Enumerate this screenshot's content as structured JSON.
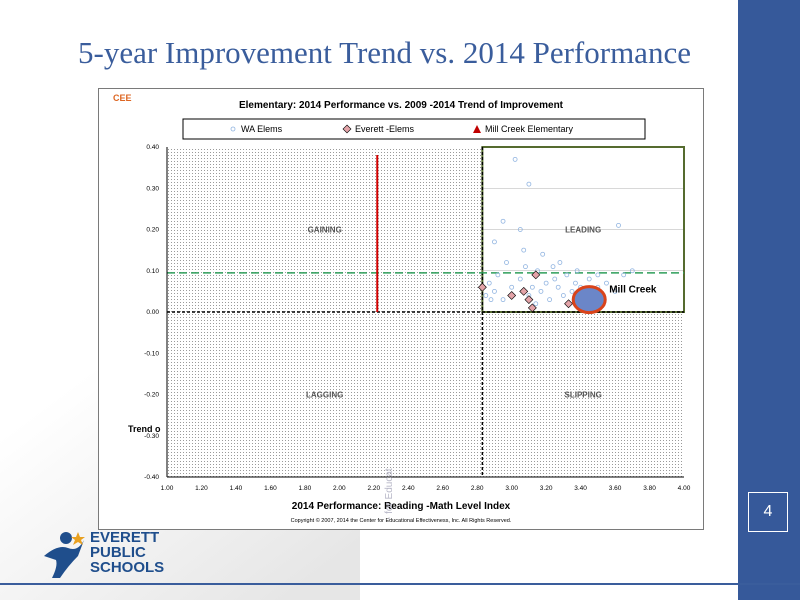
{
  "slide": {
    "title": "5-year Improvement Trend vs. 2014 Performance",
    "page_number": "4",
    "trend_label": "Trend o",
    "vertical_text": "- for Educat",
    "logo_lines": [
      "EVERETT",
      "PUBLIC",
      "SCHOOLS"
    ],
    "colors": {
      "sidebar": "#36599a",
      "title": "#3a5d9c"
    }
  },
  "chart_data": {
    "type": "scatter",
    "title": "Elementary:  2014 Performance vs. 2009   -2014 Trend of Improvement",
    "brand": "CEE",
    "xlabel": "2014 Performance: Reading   -Math Level Index",
    "ylabel": "",
    "xlim": [
      1.0,
      4.0
    ],
    "ylim": [
      -0.4,
      0.4
    ],
    "x_ticks": [
      "1.00",
      "1.20",
      "1.40",
      "1.60",
      "1.80",
      "2.00",
      "2.20",
      "2.40",
      "2.60",
      "2.80",
      "3.00",
      "3.20",
      "3.40",
      "3.60",
      "3.80",
      "4.00"
    ],
    "y_ticks": [
      "0.40",
      "0.30",
      "0.20",
      "0.10",
      "0.00",
      "-0.10",
      "-0.20",
      "-0.30",
      "-0.40"
    ],
    "legend": [
      "WA Elems",
      "Everett  -Elems",
      "Mill Creek Elementary"
    ],
    "legend_position": "top",
    "quadrants": [
      "GAINING",
      "LEADING",
      "LAGGING",
      "SLIPPING"
    ],
    "reference_lines": {
      "x_red": 2.22,
      "x_divider": 2.83,
      "y_green": 0.095
    },
    "highlight_label": "Mill Creek",
    "highlight": {
      "x": 3.45,
      "y": 0.03
    },
    "footer": "Copyright © 2007, 2014 the Center for Educational Effectiveness, Inc.  All Rights Reserved.",
    "series": [
      {
        "name": "WA Elems",
        "marker": "circle",
        "color": "#8fb3e0",
        "points": [
          [
            2.85,
            0.04
          ],
          [
            2.87,
            0.07
          ],
          [
            2.9,
            0.05
          ],
          [
            2.92,
            0.09
          ],
          [
            2.95,
            0.03
          ],
          [
            2.97,
            0.12
          ],
          [
            3.0,
            0.06
          ],
          [
            3.02,
            0.37
          ],
          [
            3.05,
            0.08
          ],
          [
            3.07,
            0.15
          ],
          [
            3.1,
            0.04
          ],
          [
            3.12,
            0.06
          ],
          [
            3.15,
            0.1
          ],
          [
            3.17,
            0.05
          ],
          [
            3.2,
            0.07
          ],
          [
            3.22,
            0.03
          ],
          [
            3.25,
            0.08
          ],
          [
            3.27,
            0.06
          ],
          [
            3.3,
            0.04
          ],
          [
            3.32,
            0.09
          ],
          [
            3.35,
            0.05
          ],
          [
            3.37,
            0.07
          ],
          [
            3.4,
            0.06
          ],
          [
            3.42,
            0.03
          ],
          [
            3.45,
            0.08
          ],
          [
            3.47,
            0.05
          ],
          [
            3.5,
            0.06
          ],
          [
            3.52,
            0.04
          ],
          [
            3.55,
            0.07
          ],
          [
            3.6,
            0.05
          ],
          [
            3.62,
            0.21
          ],
          [
            3.65,
            0.09
          ],
          [
            3.7,
            0.1
          ],
          [
            3.1,
            0.31
          ],
          [
            2.9,
            0.17
          ],
          [
            3.05,
            0.2
          ],
          [
            2.95,
            0.22
          ],
          [
            3.18,
            0.14
          ],
          [
            3.28,
            0.12
          ],
          [
            3.08,
            0.11
          ],
          [
            2.88,
            0.03
          ],
          [
            3.14,
            0.02
          ],
          [
            3.24,
            0.11
          ],
          [
            3.38,
            0.1
          ],
          [
            3.5,
            0.09
          ]
        ]
      },
      {
        "name": "Everett  -Elems",
        "marker": "diamond",
        "color": "#e3a3a8",
        "points": [
          [
            2.83,
            0.06
          ],
          [
            3.0,
            0.04
          ],
          [
            3.07,
            0.05
          ],
          [
            3.1,
            0.03
          ],
          [
            3.14,
            0.09
          ],
          [
            3.33,
            0.02
          ],
          [
            3.12,
            0.01
          ]
        ]
      },
      {
        "name": "Mill Creek Elementary",
        "marker": "triangle",
        "color": "#c00000",
        "points": [
          [
            3.45,
            0.03
          ]
        ]
      }
    ]
  }
}
